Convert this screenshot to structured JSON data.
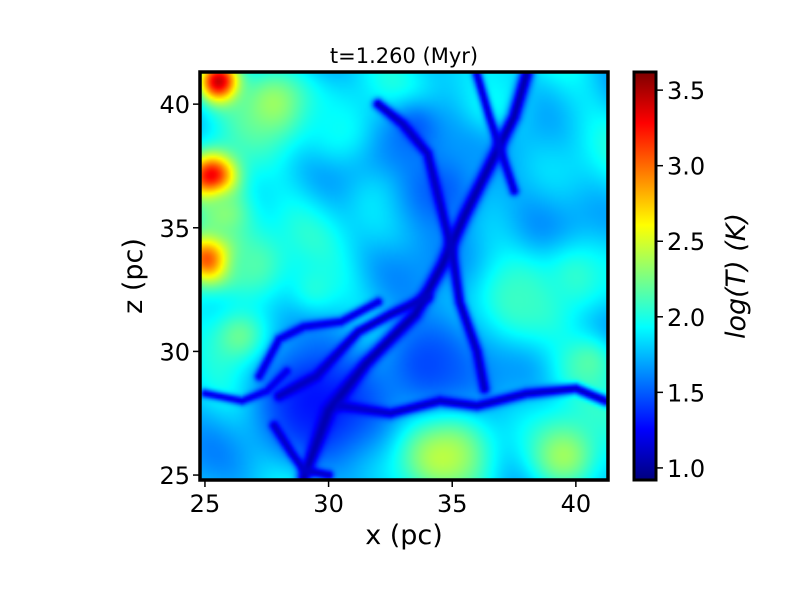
{
  "chart_data": {
    "type": "heatmap",
    "title": "t=1.260 (Myr)",
    "xlabel": "x (pc)",
    "ylabel": "z (pc)",
    "xlim": [
      24.8,
      41.3
    ],
    "ylim": [
      24.8,
      41.3
    ],
    "x_ticks": [
      25,
      30,
      35,
      40
    ],
    "x_tick_labels": [
      "25",
      "30",
      "35",
      "40"
    ],
    "y_ticks": [
      25,
      30,
      35,
      40
    ],
    "y_tick_labels": [
      "25",
      "30",
      "35",
      "40"
    ],
    "colorbar": {
      "label": "log(T) (K)",
      "range": [
        0.92,
        3.62
      ],
      "ticks": [
        1.0,
        1.5,
        2.0,
        2.5,
        3.0,
        3.5
      ],
      "tick_labels": [
        "1.0",
        "1.5",
        "2.0",
        "2.5",
        "3.0",
        "3.5"
      ],
      "colormap": "jet"
    },
    "base_level": 1.8,
    "features": [
      {
        "kind": "blob",
        "x": 25.3,
        "z": 37.0,
        "r": 1.0,
        "level": 3.55
      },
      {
        "kind": "blob",
        "x": 25.3,
        "z": 33.8,
        "r": 1.0,
        "level": 3.55
      },
      {
        "kind": "blob",
        "x": 25.6,
        "z": 40.9,
        "r": 0.8,
        "level": 3.55
      },
      {
        "kind": "blob",
        "x": 27.8,
        "z": 40.0,
        "r": 1.6,
        "level": 2.35
      },
      {
        "kind": "blob",
        "x": 25.8,
        "z": 35.5,
        "r": 1.3,
        "level": 2.3
      },
      {
        "kind": "blob",
        "x": 27.0,
        "z": 33.5,
        "r": 1.6,
        "level": 2.15
      },
      {
        "kind": "blob",
        "x": 26.5,
        "z": 30.5,
        "r": 1.3,
        "level": 2.3
      },
      {
        "kind": "blob",
        "x": 34.5,
        "z": 26.0,
        "r": 1.8,
        "level": 2.5
      },
      {
        "kind": "blob",
        "x": 39.5,
        "z": 25.8,
        "r": 1.5,
        "level": 2.35
      },
      {
        "kind": "blob",
        "x": 32.5,
        "z": 36.0,
        "r": 1.4,
        "level": 2.0
      },
      {
        "kind": "blob",
        "x": 37.5,
        "z": 32.0,
        "r": 1.6,
        "level": 2.1
      },
      {
        "kind": "blob",
        "x": 40.0,
        "z": 33.0,
        "r": 1.5,
        "level": 2.05
      },
      {
        "kind": "blob",
        "x": 40.5,
        "z": 29.5,
        "r": 1.2,
        "level": 2.15
      },
      {
        "kind": "blob",
        "x": 36.5,
        "z": 40.0,
        "r": 1.6,
        "level": 1.95
      },
      {
        "kind": "blob",
        "x": 30.5,
        "z": 39.0,
        "r": 1.5,
        "level": 1.95
      },
      {
        "kind": "blob",
        "x": 29.5,
        "z": 32.5,
        "r": 1.3,
        "level": 2.05
      },
      {
        "kind": "blob",
        "x": 29.5,
        "z": 28.0,
        "r": 2.6,
        "level": 1.3
      },
      {
        "kind": "blob",
        "x": 34.0,
        "z": 29.5,
        "r": 2.2,
        "level": 1.45
      },
      {
        "kind": "blob",
        "x": 34.5,
        "z": 36.5,
        "r": 2.2,
        "level": 1.5
      },
      {
        "kind": "blob",
        "x": 33.5,
        "z": 39.0,
        "r": 1.2,
        "level": 1.5
      },
      {
        "kind": "filament",
        "level": 1.05,
        "width": 0.28,
        "points": [
          [
            29.0,
            24.9
          ],
          [
            30.0,
            27.6
          ],
          [
            31.5,
            29.5
          ],
          [
            33.5,
            31.5
          ],
          [
            34.6,
            33.5
          ],
          [
            35.5,
            35.5
          ],
          [
            36.5,
            37.5
          ],
          [
            37.5,
            39.5
          ],
          [
            38.0,
            41.2
          ]
        ]
      },
      {
        "kind": "filament",
        "level": 1.1,
        "width": 0.22,
        "points": [
          [
            28.0,
            28.2
          ],
          [
            29.5,
            29.0
          ],
          [
            31.2,
            30.8
          ],
          [
            32.5,
            31.5
          ],
          [
            34.0,
            32.2
          ]
        ]
      },
      {
        "kind": "filament",
        "level": 1.1,
        "width": 0.22,
        "points": [
          [
            32.0,
            40.0
          ],
          [
            33.0,
            39.2
          ],
          [
            34.0,
            38.0
          ],
          [
            34.5,
            36.0
          ],
          [
            35.0,
            34.0
          ],
          [
            35.3,
            32.0
          ],
          [
            36.0,
            30.0
          ],
          [
            36.3,
            28.5
          ]
        ]
      },
      {
        "kind": "filament",
        "level": 1.12,
        "width": 0.22,
        "points": [
          [
            30.5,
            27.8
          ],
          [
            32.5,
            27.5
          ],
          [
            34.5,
            28.0
          ],
          [
            36.0,
            27.8
          ],
          [
            38.0,
            28.3
          ],
          [
            40.0,
            28.5
          ],
          [
            41.2,
            28.0
          ]
        ]
      },
      {
        "kind": "filament",
        "level": 1.12,
        "width": 0.2,
        "points": [
          [
            27.8,
            27.0
          ],
          [
            28.5,
            25.9
          ],
          [
            29.0,
            25.2
          ],
          [
            30.0,
            25.0
          ]
        ]
      },
      {
        "kind": "filament",
        "level": 1.15,
        "width": 0.2,
        "points": [
          [
            36.0,
            41.2
          ],
          [
            36.5,
            39.5
          ],
          [
            37.0,
            38.0
          ],
          [
            37.5,
            36.5
          ]
        ]
      },
      {
        "kind": "filament",
        "level": 1.18,
        "width": 0.2,
        "points": [
          [
            27.2,
            29.0
          ],
          [
            28.0,
            30.5
          ],
          [
            29.0,
            31.0
          ],
          [
            30.5,
            31.2
          ],
          [
            32.0,
            32.0
          ]
        ]
      },
      {
        "kind": "filament",
        "level": 1.2,
        "width": 0.18,
        "points": [
          [
            25.0,
            28.3
          ],
          [
            26.5,
            28.0
          ],
          [
            27.5,
            28.4
          ],
          [
            28.3,
            29.2
          ]
        ]
      }
    ]
  }
}
